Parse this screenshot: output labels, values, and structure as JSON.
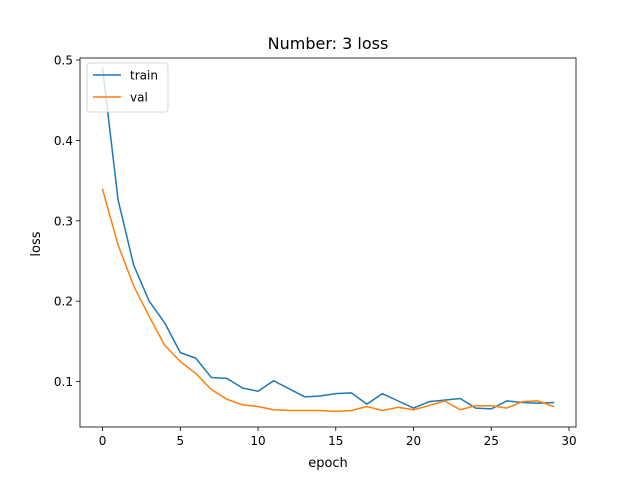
{
  "chart_data": {
    "type": "line",
    "title": "Number: 3 loss",
    "xlabel": "epoch",
    "ylabel": "loss",
    "xlim": [
      -1.45,
      30.45
    ],
    "ylim": [
      0.0435,
      0.5025
    ],
    "xticks": [
      0,
      5,
      10,
      15,
      20,
      25,
      30
    ],
    "yticks": [
      0.1,
      0.2,
      0.3,
      0.4,
      0.5
    ],
    "xtick_labels": [
      "0",
      "5",
      "10",
      "15",
      "20",
      "25",
      "30"
    ],
    "ytick_labels": [
      "0.1",
      "0.2",
      "0.3",
      "0.4",
      "0.5"
    ],
    "legend_position": "top-left",
    "grid": false,
    "x": [
      0,
      1,
      2,
      3,
      4,
      5,
      6,
      7,
      8,
      9,
      10,
      11,
      12,
      13,
      14,
      15,
      16,
      17,
      18,
      19,
      20,
      21,
      22,
      23,
      24,
      25,
      26,
      27,
      28,
      29
    ],
    "series": [
      {
        "name": "train",
        "color": "#1f77b4",
        "values": [
          0.49,
          0.326,
          0.245,
          0.2,
          0.173,
          0.136,
          0.129,
          0.105,
          0.104,
          0.092,
          0.088,
          0.101,
          0.091,
          0.081,
          0.082,
          0.085,
          0.086,
          0.072,
          0.085,
          0.076,
          0.067,
          0.075,
          0.077,
          0.079,
          0.067,
          0.066,
          0.076,
          0.074,
          0.073,
          0.074
        ]
      },
      {
        "name": "val",
        "color": "#ff7f0e",
        "values": [
          0.339,
          0.27,
          0.219,
          0.181,
          0.145,
          0.125,
          0.11,
          0.09,
          0.078,
          0.071,
          0.069,
          0.065,
          0.064,
          0.064,
          0.064,
          0.063,
          0.064,
          0.069,
          0.064,
          0.068,
          0.065,
          0.07,
          0.076,
          0.065,
          0.07,
          0.07,
          0.067,
          0.075,
          0.076,
          0.069
        ]
      }
    ]
  }
}
